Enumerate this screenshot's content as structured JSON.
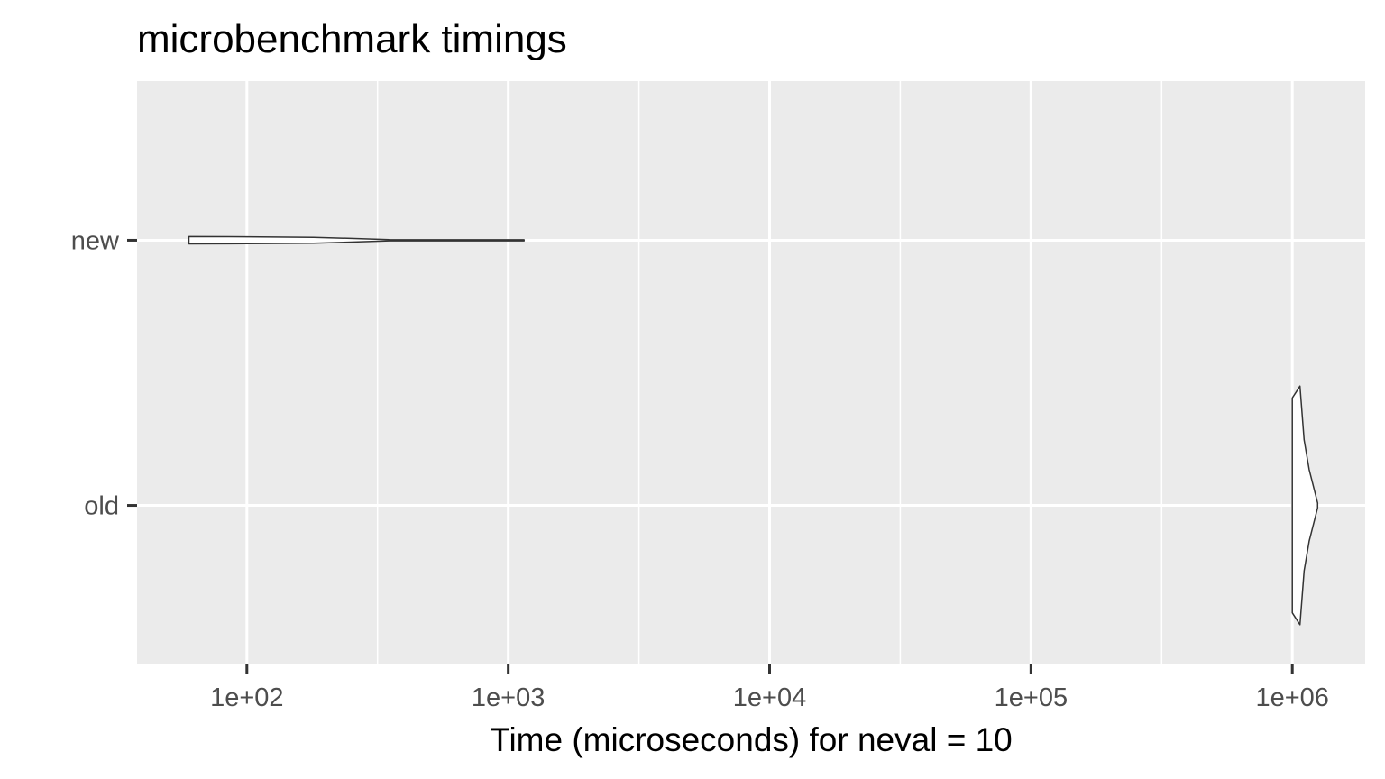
{
  "chart_data": {
    "type": "violin",
    "title": "microbenchmark timings",
    "xlabel": "Time (microseconds) for neval = 10",
    "ylabel": "",
    "x_scale": "log10",
    "xlim": [
      38,
      1900000
    ],
    "x_ticks": [
      {
        "value": 100,
        "label": "1e+02"
      },
      {
        "value": 1000,
        "label": "1e+03"
      },
      {
        "value": 10000,
        "label": "1e+04"
      },
      {
        "value": 100000,
        "label": "1e+05"
      },
      {
        "value": 1000000,
        "label": "1e+06"
      }
    ],
    "categories": [
      "new",
      "old"
    ],
    "grid": true,
    "legend": "none",
    "series": [
      {
        "category": "new",
        "min": 60,
        "max": 1150,
        "density": [
          {
            "x": 60,
            "w": 1.0
          },
          {
            "x": 100,
            "w": 0.95
          },
          {
            "x": 180,
            "w": 0.8
          },
          {
            "x": 250,
            "w": 0.5
          },
          {
            "x": 350,
            "w": 0.15
          },
          {
            "x": 600,
            "w": 0.05
          },
          {
            "x": 1150,
            "w": 0.05
          }
        ]
      },
      {
        "category": "old",
        "min": 1000000,
        "max": 1250000,
        "density": [
          {
            "x": 1000000,
            "w": 0.9
          },
          {
            "x": 1035000,
            "w": 0.95
          },
          {
            "x": 1070000,
            "w": 1.0
          },
          {
            "x": 1110000,
            "w": 0.55
          },
          {
            "x": 1160000,
            "w": 0.3
          },
          {
            "x": 1250000,
            "w": 0.02
          }
        ]
      }
    ],
    "colors": {
      "panel": "#EBEBEB",
      "grid": "#FFFFFF",
      "violin_fill": "#FFFFFF",
      "violin_stroke": "#333333",
      "tick": "#333333"
    }
  }
}
